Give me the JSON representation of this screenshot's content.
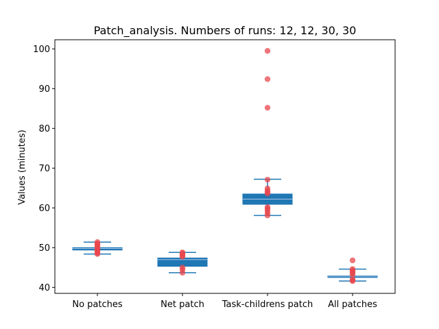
{
  "chart_data": {
    "type": "box",
    "title": "Patch_analysis. Numbers of runs: 12, 12, 30, 30",
    "xlabel": "",
    "ylabel": "Values (minutes)",
    "ylim": [
      38.5,
      102.3
    ],
    "yticks": [
      40,
      50,
      60,
      70,
      80,
      90,
      100
    ],
    "categories": [
      "No patches",
      "Net patch",
      "Task-childrens patch",
      "All patches"
    ],
    "grid": false,
    "colors": {
      "box": "#1f77b4",
      "median": "#aec7e8",
      "points": "#e8474d"
    },
    "boxes": [
      {
        "category": "No patches",
        "whisker_low": 48.4,
        "q1": 49.4,
        "median": 49.8,
        "q3": 50.0,
        "whisker_high": 51.4,
        "points": [
          48.4,
          48.6,
          48.9,
          49.3,
          49.5,
          49.6,
          49.9,
          50.1,
          50.6,
          50.8,
          51.0,
          51.4
        ]
      },
      {
        "category": "Net patch",
        "whisker_low": 43.7,
        "q1": 45.3,
        "median": 47.0,
        "q3": 47.4,
        "whisker_high": 48.8,
        "points": [
          43.7,
          44.5,
          45.0,
          47.7,
          48.0,
          48.3,
          48.6,
          48.8
        ]
      },
      {
        "category": "Task-childrens patch",
        "whisker_low": 58.1,
        "q1": 60.9,
        "median": 62.2,
        "q3": 63.5,
        "whisker_high": 67.2,
        "points": [
          58.1,
          58.7,
          59.3,
          59.8,
          60.2,
          63.6,
          64.0,
          64.3,
          64.9,
          67.1,
          85.2,
          92.4,
          99.5
        ]
      },
      {
        "category": "All patches",
        "whisker_low": 41.6,
        "q1": 42.5,
        "median": 42.8,
        "q3": 42.9,
        "whisker_high": 44.6,
        "points": [
          41.6,
          41.8,
          42.0,
          43.2,
          43.6,
          44.0,
          44.3,
          44.6,
          46.8
        ]
      }
    ]
  }
}
